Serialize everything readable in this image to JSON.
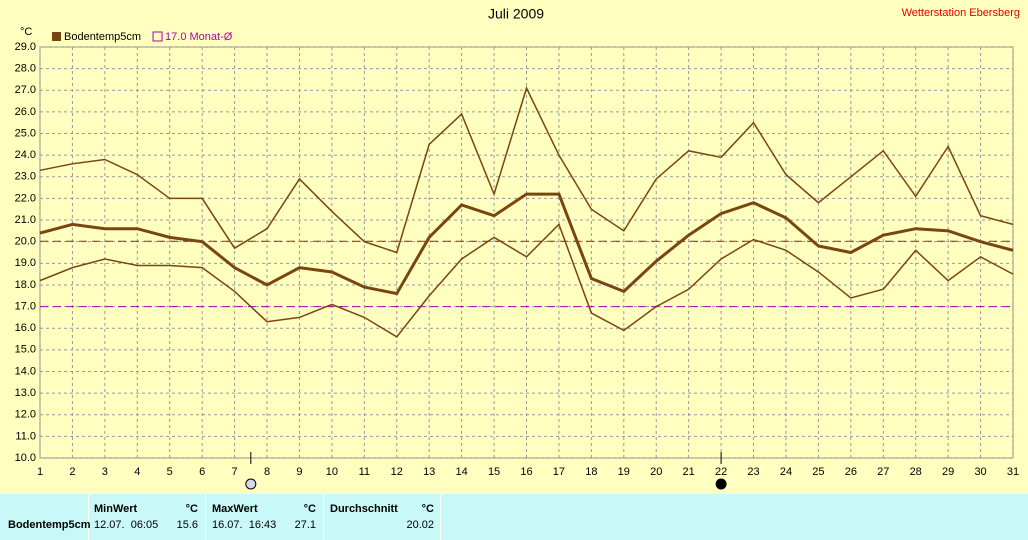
{
  "chart_data": {
    "type": "line",
    "title": "Juli 2009",
    "station": "Wetterstation Ebersberg",
    "ylabel": "°C",
    "x": [
      1,
      2,
      3,
      4,
      5,
      6,
      7,
      8,
      9,
      10,
      11,
      12,
      13,
      14,
      15,
      16,
      17,
      18,
      19,
      20,
      21,
      22,
      23,
      24,
      25,
      26,
      27,
      28,
      29,
      30,
      31
    ],
    "xlim": [
      1,
      31
    ],
    "xticks": [
      1,
      2,
      3,
      4,
      5,
      6,
      7,
      8,
      9,
      10,
      11,
      12,
      13,
      14,
      15,
      16,
      17,
      18,
      19,
      20,
      21,
      22,
      23,
      24,
      25,
      26,
      27,
      28,
      29,
      30,
      31
    ],
    "ylim": [
      10,
      29
    ],
    "yticks": [
      {
        "value": 10,
        "label": "10.0"
      },
      {
        "value": 11,
        "label": "11.0"
      },
      {
        "value": 12,
        "label": "12.0"
      },
      {
        "value": 13,
        "label": "13.0"
      },
      {
        "value": 14,
        "label": "14.0"
      },
      {
        "value": 15,
        "label": "15.0"
      },
      {
        "value": 16,
        "label": "16.0"
      },
      {
        "value": 17,
        "label": "17.0"
      },
      {
        "value": 18,
        "label": "18.0"
      },
      {
        "value": 19,
        "label": "19.0"
      },
      {
        "value": 20,
        "label": "20.0"
      },
      {
        "value": 21,
        "label": "21.0"
      },
      {
        "value": 22,
        "label": "22.0"
      },
      {
        "value": 23,
        "label": "23.0"
      },
      {
        "value": 24,
        "label": "24.0"
      },
      {
        "value": 25,
        "label": "25.0"
      },
      {
        "value": 26,
        "label": "26.0"
      },
      {
        "value": 27,
        "label": "27.0"
      },
      {
        "value": 28,
        "label": "28.0"
      },
      {
        "value": 29,
        "label": "29.0"
      }
    ],
    "grid": true,
    "series": [
      {
        "color": "#7a4510",
        "linewidth": 1.5,
        "values": [
          23.3,
          23.6,
          23.8,
          23.1,
          22.0,
          22.0,
          19.7,
          20.6,
          22.9,
          21.4,
          20.0,
          19.5,
          24.5,
          25.9,
          22.2,
          27.1,
          24.0,
          21.5,
          20.5,
          22.9,
          24.2,
          23.9,
          25.5,
          23.1,
          21.8,
          23.0,
          24.2,
          22.1,
          24.4,
          21.2,
          20.8
        ]
      },
      {
        "name": "Bodentemp5cm",
        "color": "#7a4510",
        "linewidth": 3,
        "values": [
          20.4,
          20.8,
          20.6,
          20.6,
          20.2,
          20.0,
          18.8,
          18.0,
          18.8,
          18.6,
          17.9,
          17.6,
          20.2,
          21.7,
          21.2,
          22.2,
          22.2,
          18.3,
          17.7,
          19.1,
          20.3,
          21.3,
          21.8,
          21.1,
          19.8,
          19.5,
          20.3,
          20.6,
          20.5,
          20.0,
          19.6
        ]
      },
      {
        "color": "#7a4510",
        "linewidth": 1.5,
        "values": [
          18.2,
          18.8,
          19.2,
          18.9,
          18.9,
          18.8,
          17.7,
          16.3,
          16.5,
          17.1,
          16.5,
          15.6,
          17.5,
          19.2,
          20.2,
          19.3,
          20.8,
          16.7,
          15.9,
          17.0,
          17.8,
          19.2,
          20.1,
          19.6,
          18.6,
          17.4,
          17.8,
          19.6,
          18.2,
          19.3,
          18.5
        ]
      }
    ],
    "reference_lines": [
      {
        "value": 20.02,
        "color": "#7a4510"
      },
      {
        "value": 17,
        "color": "#b000b0",
        "label": "17.0 Monat-Ø"
      }
    ],
    "moon_phases": [
      {
        "x": 7.5,
        "phase": "full"
      },
      {
        "x": 22,
        "phase": "new"
      }
    ]
  },
  "table": {
    "header": [
      "MinWert",
      "°C",
      "MaxWert",
      "°C",
      "Durchschnitt",
      "°C"
    ],
    "rows": [
      [
        "Bodentemp5cm",
        "12.07.  06:05",
        "15.6",
        "16.07.  16:43",
        "27.1",
        "20.02"
      ]
    ]
  }
}
